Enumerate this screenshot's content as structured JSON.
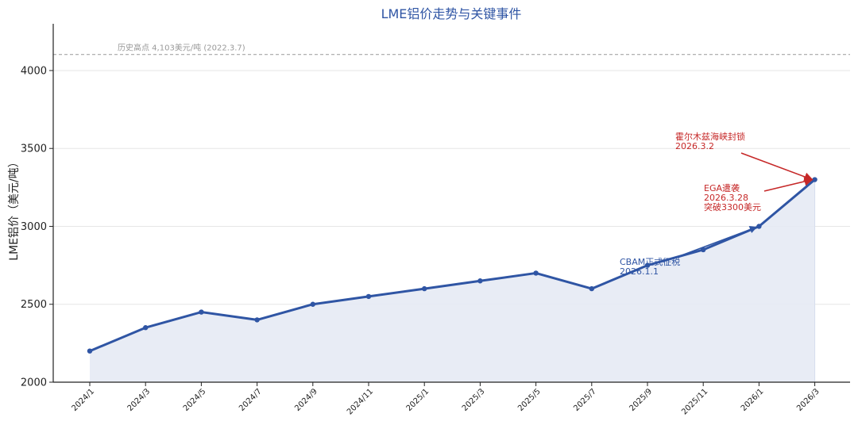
{
  "chart_data": {
    "type": "line",
    "title": "LME铝价走势与关键事件",
    "ylabel": "LME铝价（美元/吨）",
    "xlabel": "",
    "ylim": [
      2000,
      4300
    ],
    "yticks": [
      2000,
      2500,
      3000,
      3500,
      4000
    ],
    "grid": "horizontal",
    "categories": [
      "2024/1",
      "2024/3",
      "2024/5",
      "2024/7",
      "2024/9",
      "2024/11",
      "2025/1",
      "2025/3",
      "2025/5",
      "2025/7",
      "2025/9",
      "2025/11",
      "2026/1",
      "2026/3"
    ],
    "values": [
      2200,
      2350,
      2450,
      2400,
      2500,
      2550,
      2600,
      2650,
      2700,
      2600,
      2750,
      2850,
      3000,
      3300
    ],
    "reference_line": {
      "value": 4103,
      "label": "历史高点 4,103美元/吨 (2022.3.7)"
    },
    "annotations": [
      {
        "lines": [
          "霍尔木兹海峡封锁",
          "2026.3.2"
        ],
        "target_index": 13,
        "color": "#C62828"
      },
      {
        "lines": [
          "EGA遭袭",
          "2026.3.28",
          "突破3300美元"
        ],
        "target_index": 13,
        "color": "#C62828"
      },
      {
        "lines": [
          "CBAM正式征税",
          "2026.1.1"
        ],
        "target_index": 12,
        "color": "#2F55A4"
      }
    ],
    "colors": {
      "line": "#2F55A4",
      "fill": "#E5EAF4",
      "annotation_red": "#C62828",
      "reference": "#999999",
      "grid": "#E6E6E6"
    }
  }
}
